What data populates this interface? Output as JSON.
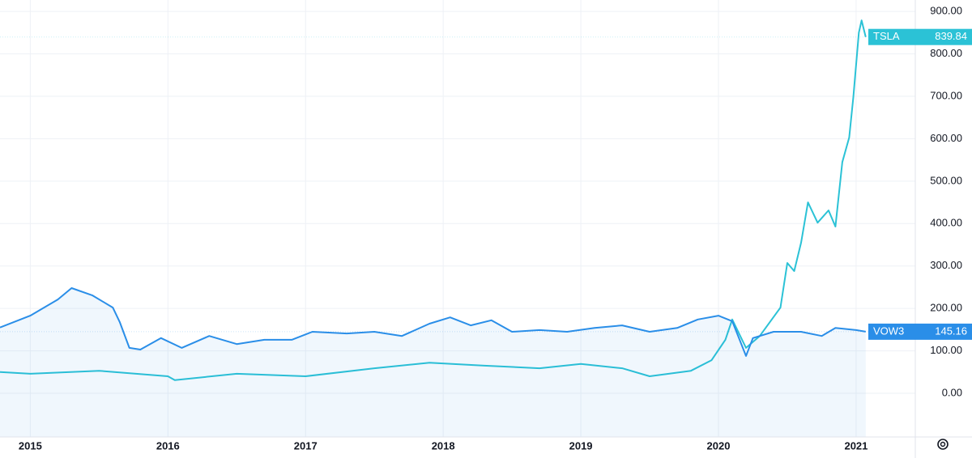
{
  "chart_data": {
    "type": "line",
    "xlim": [
      2014.78,
      2021.43
    ],
    "xticks": [
      2015,
      2016,
      2017,
      2018,
      2019,
      2020,
      2021
    ],
    "ylim": [
      -103,
      927
    ],
    "yticks": [
      {
        "value": 0,
        "label": "0.00"
      },
      {
        "value": 100,
        "label": "100.00"
      },
      {
        "value": 200,
        "label": "200.00"
      },
      {
        "value": 300,
        "label": "300.00"
      },
      {
        "value": 400,
        "label": "400.00"
      },
      {
        "value": 500,
        "label": "500.00"
      },
      {
        "value": 600,
        "label": "600.00"
      },
      {
        "value": 700,
        "label": "700.00"
      },
      {
        "value": 800,
        "label": "800.00"
      },
      {
        "value": 900,
        "label": "900.00"
      }
    ],
    "grid": true,
    "series": [
      {
        "name": "TSLA",
        "color": "#2bc2d6",
        "x": [
          2014.78,
          2015.0,
          2015.5,
          2016.0,
          2016.05,
          2016.5,
          2017.0,
          2017.5,
          2017.9,
          2018.3,
          2018.7,
          2019.0,
          2019.3,
          2019.5,
          2019.8,
          2019.95,
          2020.05,
          2020.1,
          2020.2,
          2020.3,
          2020.45,
          2020.5,
          2020.55,
          2020.6,
          2020.65,
          2020.72,
          2020.8,
          2020.85,
          2020.9,
          2020.95,
          2020.98,
          2021.02,
          2021.04,
          2021.07
        ],
        "values": [
          50,
          46,
          53,
          40,
          31,
          46,
          40,
          59,
          72,
          65,
          59,
          69,
          59,
          40,
          53,
          78,
          126,
          174,
          107,
          135,
          202,
          307,
          288,
          355,
          450,
          402,
          431,
          393,
          545,
          603,
          698,
          850,
          879,
          839.84
        ]
      },
      {
        "name": "VOW3",
        "color": "#2a8ee8",
        "x": [
          2014.78,
          2015.0,
          2015.2,
          2015.3,
          2015.45,
          2015.6,
          2015.65,
          2015.72,
          2015.8,
          2015.95,
          2016.1,
          2016.3,
          2016.5,
          2016.7,
          2016.9,
          2017.05,
          2017.3,
          2017.5,
          2017.7,
          2017.9,
          2018.05,
          2018.2,
          2018.35,
          2018.5,
          2018.7,
          2018.9,
          2019.1,
          2019.3,
          2019.5,
          2019.7,
          2019.85,
          2020.0,
          2020.1,
          2020.2,
          2020.25,
          2020.4,
          2020.6,
          2020.75,
          2020.85,
          2021.0,
          2021.07
        ],
        "values": [
          155,
          183,
          221,
          248,
          231,
          202,
          168,
          107,
          103,
          130,
          107,
          135,
          116,
          126,
          126,
          145,
          141,
          145,
          135,
          164,
          179,
          160,
          172,
          145,
          149,
          145,
          154,
          160,
          145,
          154,
          174,
          183,
          170,
          88,
          130,
          145,
          145,
          135,
          154,
          149,
          145.16
        ]
      }
    ]
  }
}
